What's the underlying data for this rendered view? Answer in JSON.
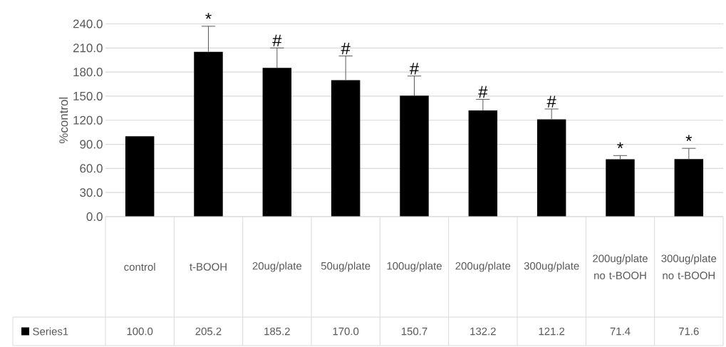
{
  "chart_data": {
    "type": "bar",
    "ylabel": "%control",
    "categories": [
      "control",
      "t-BOOH",
      "20ug/plate",
      "50ug/plate",
      "100ug/plate",
      "200ug/plate",
      "300ug/plate",
      "200ug/plate no t-BOOH",
      "300ug/plate no t-BOOH"
    ],
    "series": [
      {
        "name": "Series1",
        "color": "#000000",
        "values": [
          100.0,
          205.2,
          185.2,
          170.0,
          150.7,
          132.2,
          121.2,
          71.4,
          71.6
        ],
        "value_labels": [
          "100.0",
          "205.2",
          "185.2",
          "170.0",
          "150.7",
          "132.2",
          "121.2",
          "71.4",
          "71.6"
        ],
        "errors": [
          null,
          [
            205.2,
            237
          ],
          [
            185.2,
            210
          ],
          [
            170.0,
            200
          ],
          [
            150.7,
            175
          ],
          [
            132.2,
            146
          ],
          [
            121.2,
            134
          ],
          [
            71.4,
            76
          ],
          [
            71.6,
            85
          ]
        ]
      }
    ],
    "ylim": [
      0,
      240
    ],
    "yticks": [
      {
        "value": 0,
        "label": "0.0"
      },
      {
        "value": 30,
        "label": "30.0"
      },
      {
        "value": 60,
        "label": "60.0"
      },
      {
        "value": 90,
        "label": "90.0"
      },
      {
        "value": 120,
        "label": "120.0"
      },
      {
        "value": 150,
        "label": "150.0"
      },
      {
        "value": 180,
        "label": "180.0"
      },
      {
        "value": 210,
        "label": "210.0"
      },
      {
        "value": 240,
        "label": "240.0"
      }
    ],
    "grid": "y",
    "legend": "bottom",
    "annotations": [
      {
        "text": "*",
        "x": "t-BOOH",
        "y": 237
      },
      {
        "text": "#",
        "x": "20ug/plate",
        "y": 210
      },
      {
        "text": "#",
        "x": "50ug/plate",
        "y": 200
      },
      {
        "text": "#",
        "x": "100ug/plate",
        "y": 175
      },
      {
        "text": "#",
        "x": "200ug/plate",
        "y": 146
      },
      {
        "text": "#",
        "x": "300ug/plate",
        "y": 134
      },
      {
        "text": "*",
        "x": "200ug/plate no t-BOOH",
        "y": 76
      },
      {
        "text": "*",
        "x": "300ug/plate no t-BOOH",
        "y": 85
      }
    ]
  }
}
